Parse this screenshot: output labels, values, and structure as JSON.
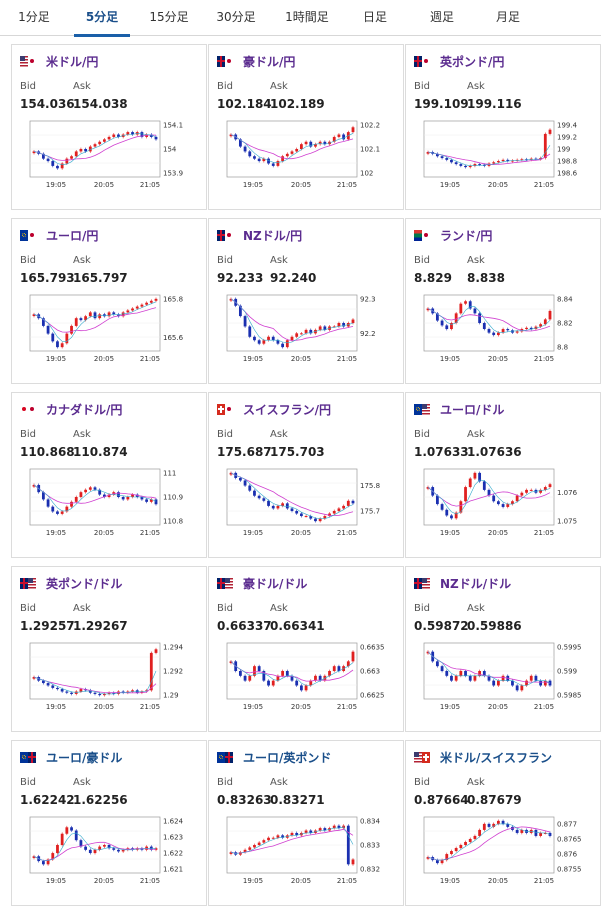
{
  "tabs": [
    {
      "label": "1分足",
      "active": false
    },
    {
      "label": "5分足",
      "active": true
    },
    {
      "label": "15分足",
      "active": false
    },
    {
      "label": "30分足",
      "active": false
    },
    {
      "label": "1時間足",
      "active": false
    },
    {
      "label": "日足",
      "active": false
    },
    {
      "label": "週足",
      "active": false
    },
    {
      "label": "月足",
      "active": false
    }
  ],
  "labels": {
    "bid": "Bid",
    "ask": "Ask"
  },
  "x_ticks": [
    "19:05",
    "20:05",
    "21:05"
  ],
  "colors": {
    "up": "#e02020",
    "down": "#1a2fb0",
    "ma": "#d040d0",
    "ma2": "#33aacc",
    "title_purple": "#5b2c8f",
    "title_blue": "#1a4f8a"
  },
  "cards": [
    {
      "pair": "米ドル/円",
      "flag": "us-jp-flag-icon",
      "bid": "154.036",
      "ask": "154.038",
      "y_ticks": [
        "154.1",
        "154",
        "153.9"
      ],
      "series": [
        153.99,
        153.98,
        153.96,
        153.95,
        153.93,
        153.92,
        153.94,
        153.96,
        153.97,
        153.99,
        154.0,
        153.99,
        154.01,
        154.02,
        154.03,
        154.04,
        154.05,
        154.06,
        154.05,
        154.06,
        154.07,
        154.06,
        154.07,
        154.05,
        154.06,
        154.05,
        154.04
      ],
      "ma_trend": "up"
    },
    {
      "pair": "豪ドル/円",
      "flag": "au-jp-flag-icon",
      "bid": "102.184",
      "ask": "102.189",
      "y_ticks": [
        "102.2",
        "102.1",
        "102"
      ],
      "series": [
        102.16,
        102.14,
        102.11,
        102.09,
        102.07,
        102.06,
        102.05,
        102.06,
        102.04,
        102.03,
        102.05,
        102.07,
        102.08,
        102.09,
        102.1,
        102.12,
        102.13,
        102.11,
        102.12,
        102.13,
        102.12,
        102.13,
        102.15,
        102.16,
        102.14,
        102.17,
        102.19
      ],
      "ma_trend": "flat"
    },
    {
      "pair": "英ポンド/円",
      "flag": "gb-jp-flag-icon",
      "bid": "199.109",
      "ask": "199.116",
      "y_ticks": [
        "199.4",
        "199.2",
        "199",
        "198.8",
        "198.6"
      ],
      "series": [
        198.95,
        198.92,
        198.88,
        198.85,
        198.82,
        198.78,
        198.75,
        198.72,
        198.7,
        198.72,
        198.75,
        198.74,
        198.72,
        198.76,
        198.78,
        198.8,
        198.82,
        198.8,
        198.81,
        198.82,
        198.83,
        198.82,
        198.84,
        198.83,
        198.85,
        199.25,
        199.32
      ],
      "ma_trend": "flat"
    },
    {
      "pair": "ユーロ/円",
      "flag": "eu-jp-flag-icon",
      "bid": "165.793",
      "ask": "165.797",
      "y_ticks": [
        "165.8",
        "165.6"
      ],
      "series": [
        165.72,
        165.7,
        165.66,
        165.62,
        165.58,
        165.55,
        165.57,
        165.62,
        165.66,
        165.7,
        165.69,
        165.71,
        165.73,
        165.7,
        165.72,
        165.71,
        165.73,
        165.72,
        165.71,
        165.73,
        165.74,
        165.75,
        165.76,
        165.77,
        165.78,
        165.79,
        165.8
      ],
      "ma_trend": "up"
    },
    {
      "pair": "NZドル/円",
      "flag": "nz-jp-flag-icon",
      "bid": "92.233",
      "ask": "92.240",
      "y_ticks": [
        "92.3",
        "92.2"
      ],
      "series": [
        92.3,
        92.28,
        92.25,
        92.22,
        92.19,
        92.18,
        92.17,
        92.18,
        92.19,
        92.18,
        92.17,
        92.16,
        92.18,
        92.19,
        92.2,
        92.2,
        92.21,
        92.2,
        92.21,
        92.22,
        92.21,
        92.22,
        92.22,
        92.23,
        92.22,
        92.23,
        92.24
      ],
      "ma_trend": "down"
    },
    {
      "pair": "ランド/円",
      "flag": "za-jp-flag-icon",
      "bid": "8.829",
      "ask": "8.838",
      "y_ticks": [
        "8.84",
        "8.82",
        "8.8"
      ],
      "series": [
        8.832,
        8.828,
        8.822,
        8.818,
        8.815,
        8.82,
        8.828,
        8.836,
        8.838,
        8.832,
        8.828,
        8.82,
        8.815,
        8.812,
        8.81,
        8.812,
        8.815,
        8.814,
        8.812,
        8.813,
        8.815,
        8.816,
        8.815,
        8.817,
        8.819,
        8.823,
        8.83
      ],
      "ma_trend": "up"
    },
    {
      "pair": "カナダドル/円",
      "flag": "ca-jp-flag-icon",
      "bid": "110.868",
      "ask": "110.874",
      "y_ticks": [
        "111",
        "110.9",
        "110.8"
      ],
      "series": [
        110.95,
        110.92,
        110.89,
        110.86,
        110.84,
        110.83,
        110.84,
        110.86,
        110.88,
        110.9,
        110.92,
        110.93,
        110.94,
        110.93,
        110.91,
        110.9,
        110.91,
        110.92,
        110.9,
        110.89,
        110.9,
        110.91,
        110.9,
        110.89,
        110.88,
        110.89,
        110.87
      ],
      "ma_trend": "flat"
    },
    {
      "pair": "スイスフラン/円",
      "flag": "ch-jp-flag-icon",
      "bid": "175.687",
      "ask": "175.703",
      "y_ticks": [
        "175.8",
        "175.7"
      ],
      "series": [
        175.85,
        175.83,
        175.82,
        175.8,
        175.78,
        175.76,
        175.75,
        175.74,
        175.72,
        175.71,
        175.72,
        175.73,
        175.71,
        175.7,
        175.69,
        175.68,
        175.68,
        175.67,
        175.66,
        175.67,
        175.68,
        175.69,
        175.7,
        175.71,
        175.72,
        175.74,
        175.73
      ],
      "ma_trend": "down"
    },
    {
      "pair": "ユーロ/ドル",
      "flag": "eu-us-flag-icon",
      "bid": "1.07633",
      "ask": "1.07636",
      "y_ticks": [
        "1.076",
        "1.075"
      ],
      "series": [
        1.0762,
        1.0759,
        1.0756,
        1.0754,
        1.0752,
        1.0751,
        1.0753,
        1.0757,
        1.0762,
        1.0765,
        1.0767,
        1.0764,
        1.0761,
        1.0759,
        1.0757,
        1.0756,
        1.0755,
        1.0756,
        1.0757,
        1.0759,
        1.076,
        1.0761,
        1.0761,
        1.076,
        1.0761,
        1.0762,
        1.0763
      ],
      "ma_trend": "flat"
    },
    {
      "pair": "英ポンド/ドル",
      "flag": "gb-us-flag-icon",
      "bid": "1.29257",
      "ask": "1.29267",
      "y_ticks": [
        "1.294",
        "1.292",
        "1.29"
      ],
      "series": [
        1.2915,
        1.2912,
        1.291,
        1.2908,
        1.2906,
        1.2905,
        1.2903,
        1.2902,
        1.2901,
        1.2903,
        1.2905,
        1.2904,
        1.2902,
        1.2901,
        1.29,
        1.2901,
        1.2902,
        1.2901,
        1.2903,
        1.2902,
        1.2903,
        1.2904,
        1.2902,
        1.2903,
        1.2904,
        1.2935,
        1.2938
      ],
      "ma_trend": "down"
    },
    {
      "pair": "豪ドル/ドル",
      "flag": "au-us-flag-icon",
      "bid": "0.66337",
      "ask": "0.66341",
      "y_ticks": [
        "0.6635",
        "0.663",
        "0.6625"
      ],
      "series": [
        0.6632,
        0.663,
        0.6629,
        0.6628,
        0.6629,
        0.6631,
        0.663,
        0.6628,
        0.6627,
        0.6628,
        0.6629,
        0.663,
        0.6629,
        0.6628,
        0.6627,
        0.6626,
        0.6627,
        0.6628,
        0.6629,
        0.6628,
        0.6629,
        0.663,
        0.6631,
        0.663,
        0.6631,
        0.6632,
        0.6634
      ],
      "ma_trend": "down"
    },
    {
      "pair": "NZドル/ドル",
      "flag": "nz-us-flag-icon",
      "bid": "0.59872",
      "ask": "0.59886",
      "y_ticks": [
        "0.5995",
        "0.599",
        "0.5985"
      ],
      "series": [
        0.5994,
        0.5992,
        0.5991,
        0.599,
        0.5989,
        0.5988,
        0.5989,
        0.599,
        0.5989,
        0.5988,
        0.5989,
        0.599,
        0.5989,
        0.5988,
        0.5987,
        0.5988,
        0.5989,
        0.5988,
        0.5987,
        0.5986,
        0.5987,
        0.5988,
        0.5989,
        0.5988,
        0.5987,
        0.5988,
        0.5987
      ],
      "ma_trend": "down"
    },
    {
      "pair": "ユーロ/豪ドル",
      "flag": "eu-au-flag-icon",
      "bid": "1.62242",
      "ask": "1.62256",
      "y_ticks": [
        "1.624",
        "1.623",
        "1.622",
        "1.621"
      ],
      "series": [
        1.6218,
        1.6215,
        1.6213,
        1.6216,
        1.622,
        1.6225,
        1.6232,
        1.6236,
        1.6234,
        1.6228,
        1.6224,
        1.6222,
        1.622,
        1.6222,
        1.6224,
        1.6225,
        1.6223,
        1.6222,
        1.6221,
        1.6222,
        1.6223,
        1.6222,
        1.6223,
        1.6222,
        1.6224,
        1.6222,
        1.6223
      ],
      "ma_trend": "flat"
    },
    {
      "pair": "ユーロ/英ポンド",
      "flag": "eu-gb-flag-icon",
      "bid": "0.83263",
      "ask": "0.83271",
      "y_ticks": [
        "0.834",
        "0.833",
        "0.832"
      ],
      "series": [
        0.8327,
        0.8326,
        0.8327,
        0.8328,
        0.8329,
        0.833,
        0.8331,
        0.8332,
        0.8333,
        0.8333,
        0.8334,
        0.8333,
        0.8334,
        0.8335,
        0.8334,
        0.8335,
        0.8336,
        0.8335,
        0.8336,
        0.8337,
        0.8336,
        0.8337,
        0.8338,
        0.8337,
        0.8338,
        0.8322,
        0.8324
      ],
      "ma_trend": "up"
    },
    {
      "pair": "米ドル/スイスフラン",
      "flag": "us-ch-flag-icon",
      "bid": "0.87664",
      "ask": "0.87679",
      "y_ticks": [
        "0.877",
        "0.8765",
        "0.876",
        "0.8755"
      ],
      "series": [
        0.8759,
        0.8758,
        0.8757,
        0.8758,
        0.876,
        0.8761,
        0.8762,
        0.8763,
        0.8764,
        0.8765,
        0.8766,
        0.8768,
        0.877,
        0.8769,
        0.877,
        0.8771,
        0.877,
        0.8769,
        0.8768,
        0.8767,
        0.8768,
        0.8767,
        0.8768,
        0.8766,
        0.8767,
        0.8767,
        0.8766
      ],
      "ma_trend": "up"
    }
  ]
}
